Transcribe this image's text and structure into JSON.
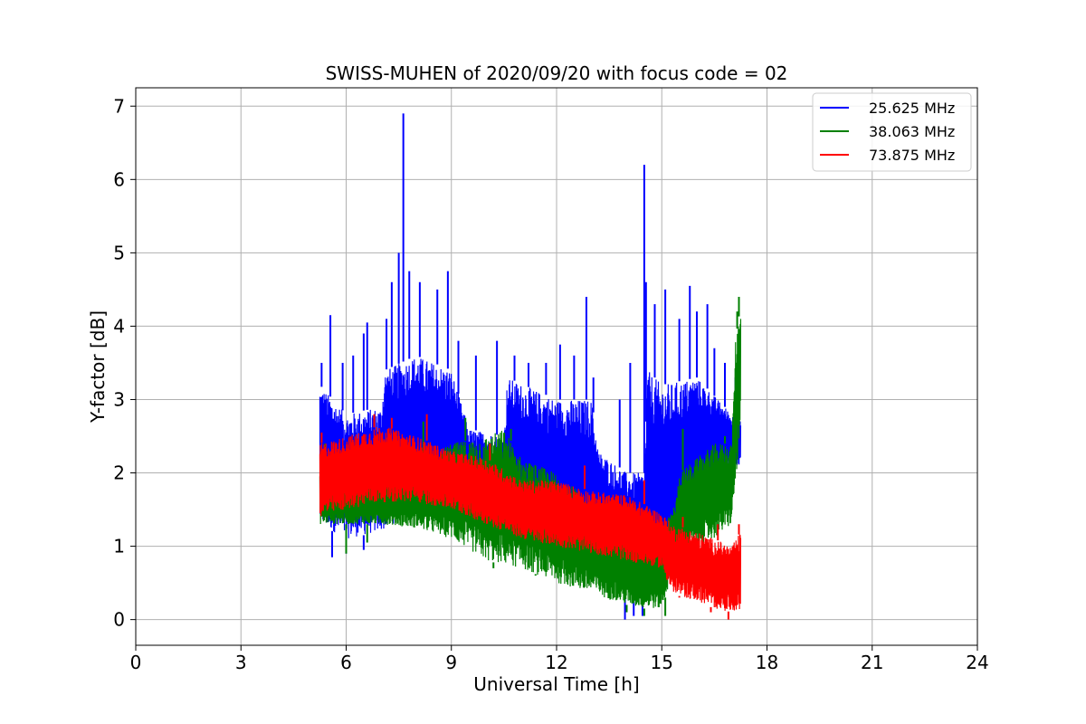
{
  "chart_data": {
    "type": "line",
    "title": "SWISS-MUHEN of 2020/09/20 with focus code = 02",
    "xlabel": "Universal Time [h]",
    "ylabel": "Y-factor [dB]",
    "xlim": [
      0,
      24
    ],
    "ylim": [
      -0.35,
      7.25
    ],
    "xticks": [
      0,
      3,
      6,
      9,
      12,
      15,
      18,
      21,
      24
    ],
    "xtick_labels": [
      "0",
      "3",
      "6",
      "9",
      "12",
      "15",
      "18",
      "21",
      "24"
    ],
    "yticks": [
      0,
      1,
      2,
      3,
      4,
      5,
      6,
      7
    ],
    "ytick_labels": [
      "0",
      "1",
      "2",
      "3",
      "4",
      "5",
      "6",
      "7"
    ],
    "grid": true,
    "legend_position": "top-right",
    "series": [
      {
        "name": "25.625 MHz",
        "color": "#0000ff",
        "lower": [
          [
            5.25,
            1.3
          ],
          [
            6,
            1.1
          ],
          [
            7,
            1.2
          ],
          [
            8,
            1.5
          ],
          [
            9,
            1.4
          ],
          [
            10,
            1.3
          ],
          [
            11,
            1.1
          ],
          [
            12,
            0.9
          ],
          [
            13,
            0.75
          ],
          [
            14,
            0.5
          ],
          [
            14.5,
            0.4
          ],
          [
            15,
            0.6
          ],
          [
            15.3,
            0.55
          ],
          [
            16,
            1.6
          ],
          [
            16.5,
            1.9
          ],
          [
            17,
            2.0
          ],
          [
            17.25,
            2.1
          ]
        ],
        "upper": [
          [
            5.25,
            3.2
          ],
          [
            6,
            2.8
          ],
          [
            7,
            2.9
          ],
          [
            7.1,
            3.4
          ],
          [
            8,
            3.6
          ],
          [
            9,
            3.4
          ],
          [
            9.5,
            2.6
          ],
          [
            10.5,
            2.5
          ],
          [
            10.6,
            3.3
          ],
          [
            12,
            3.0
          ],
          [
            13,
            3.0
          ],
          [
            13.2,
            2.3
          ],
          [
            14,
            2.0
          ],
          [
            14.5,
            2.0
          ],
          [
            14.6,
            3.4
          ],
          [
            15,
            3.2
          ],
          [
            16,
            3.3
          ],
          [
            17,
            2.8
          ],
          [
            17.25,
            2.7
          ]
        ],
        "peaks": [
          [
            5.3,
            3.5
          ],
          [
            5.55,
            4.15
          ],
          [
            5.9,
            3.5
          ],
          [
            6.2,
            3.6
          ],
          [
            6.5,
            3.9
          ],
          [
            6.6,
            4.05
          ],
          [
            7.15,
            4.1
          ],
          [
            7.3,
            4.6
          ],
          [
            7.5,
            5.0
          ],
          [
            7.63,
            6.9
          ],
          [
            7.8,
            4.75
          ],
          [
            8.1,
            4.6
          ],
          [
            8.6,
            4.5
          ],
          [
            8.9,
            4.75
          ],
          [
            9.2,
            3.8
          ],
          [
            9.7,
            3.6
          ],
          [
            10.3,
            3.8
          ],
          [
            10.8,
            3.6
          ],
          [
            11.2,
            3.5
          ],
          [
            11.7,
            3.5
          ],
          [
            12.1,
            3.75
          ],
          [
            12.5,
            3.6
          ],
          [
            12.85,
            4.4
          ],
          [
            13.05,
            3.3
          ],
          [
            13.8,
            3.0
          ],
          [
            14.1,
            3.5
          ],
          [
            14.5,
            6.2
          ],
          [
            14.55,
            4.6
          ],
          [
            14.8,
            4.3
          ],
          [
            15.1,
            4.5
          ],
          [
            15.5,
            4.1
          ],
          [
            15.8,
            4.55
          ],
          [
            16.0,
            4.2
          ],
          [
            16.3,
            4.3
          ],
          [
            16.5,
            3.7
          ],
          [
            16.8,
            3.5
          ],
          [
            17.1,
            3.3
          ]
        ],
        "dips": [
          [
            5.6,
            0.85
          ],
          [
            6.0,
            0.9
          ],
          [
            6.5,
            0.95
          ],
          [
            13.95,
            0.0
          ],
          [
            14.2,
            0.05
          ],
          [
            14.45,
            0.05
          ]
        ]
      },
      {
        "name": "38.063 MHz",
        "color": "#008000",
        "lower": [
          [
            5.25,
            1.3
          ],
          [
            6,
            1.3
          ],
          [
            7,
            1.3
          ],
          [
            8,
            1.25
          ],
          [
            9,
            1.1
          ],
          [
            10,
            0.8
          ],
          [
            11,
            0.7
          ],
          [
            12,
            0.5
          ],
          [
            13,
            0.35
          ],
          [
            14,
            0.2
          ],
          [
            14.5,
            0.15
          ],
          [
            15,
            0.15
          ],
          [
            15.5,
            0.9
          ],
          [
            16,
            1.0
          ],
          [
            16.5,
            1.1
          ],
          [
            17,
            1.3
          ],
          [
            17.25,
            2.6
          ]
        ],
        "upper": [
          [
            5.25,
            2.1
          ],
          [
            6,
            1.9
          ],
          [
            7,
            1.9
          ],
          [
            8,
            2.1
          ],
          [
            9,
            2.4
          ],
          [
            10,
            2.5
          ],
          [
            10.5,
            2.6
          ],
          [
            11,
            2.2
          ],
          [
            12,
            2.0
          ],
          [
            13,
            1.6
          ],
          [
            13.5,
            1.6
          ],
          [
            14,
            1.2
          ],
          [
            15,
            1.2
          ],
          [
            15.4,
            1.6
          ],
          [
            15.5,
            2.0
          ],
          [
            16,
            2.2
          ],
          [
            16.5,
            2.4
          ],
          [
            17,
            2.4
          ],
          [
            17.1,
            3.8
          ],
          [
            17.25,
            4.3
          ]
        ],
        "peaks": [
          [
            5.4,
            2.4
          ],
          [
            8.2,
            2.7
          ],
          [
            9.4,
            2.75
          ],
          [
            10.7,
            2.6
          ],
          [
            15.6,
            2.6
          ],
          [
            16.8,
            2.5
          ],
          [
            17.15,
            4.2
          ],
          [
            17.2,
            4.4
          ]
        ],
        "dips": [
          [
            6.0,
            0.9
          ],
          [
            6.6,
            1.05
          ],
          [
            10.2,
            0.7
          ],
          [
            11.4,
            0.6
          ],
          [
            13.0,
            0.35
          ],
          [
            14.0,
            0.1
          ],
          [
            14.5,
            0.05
          ],
          [
            15.1,
            0.05
          ]
        ]
      },
      {
        "name": "73.875 MHz",
        "color": "#ff0000",
        "lower": [
          [
            5.25,
            1.4
          ],
          [
            6,
            1.5
          ],
          [
            7,
            1.6
          ],
          [
            8,
            1.6
          ],
          [
            9,
            1.5
          ],
          [
            10,
            1.3
          ],
          [
            11,
            1.1
          ],
          [
            12,
            1.0
          ],
          [
            13,
            0.9
          ],
          [
            14,
            0.8
          ],
          [
            15,
            0.7
          ],
          [
            15.3,
            0.35
          ],
          [
            16,
            0.25
          ],
          [
            16.5,
            0.15
          ],
          [
            17,
            0.1
          ],
          [
            17.25,
            0.15
          ]
        ],
        "upper": [
          [
            5.25,
            2.4
          ],
          [
            6,
            2.5
          ],
          [
            7,
            2.65
          ],
          [
            8,
            2.5
          ],
          [
            9,
            2.3
          ],
          [
            10,
            2.2
          ],
          [
            11,
            1.9
          ],
          [
            12,
            1.9
          ],
          [
            13,
            1.75
          ],
          [
            14,
            1.7
          ],
          [
            15,
            1.45
          ],
          [
            15.3,
            1.3
          ],
          [
            16,
            1.2
          ],
          [
            17,
            1.0
          ],
          [
            17.25,
            1.2
          ]
        ],
        "peaks": [
          [
            5.3,
            2.55
          ],
          [
            6.8,
            2.8
          ],
          [
            7.3,
            2.75
          ],
          [
            8.3,
            2.8
          ],
          [
            10.1,
            2.4
          ],
          [
            12.8,
            2.1
          ],
          [
            14.5,
            1.9
          ],
          [
            15.6,
            1.4
          ],
          [
            16.6,
            1.3
          ],
          [
            17.2,
            1.3
          ]
        ],
        "dips": [
          [
            15.5,
            0.3
          ],
          [
            16.4,
            0.1
          ],
          [
            16.9,
            0.0
          ]
        ]
      }
    ]
  }
}
